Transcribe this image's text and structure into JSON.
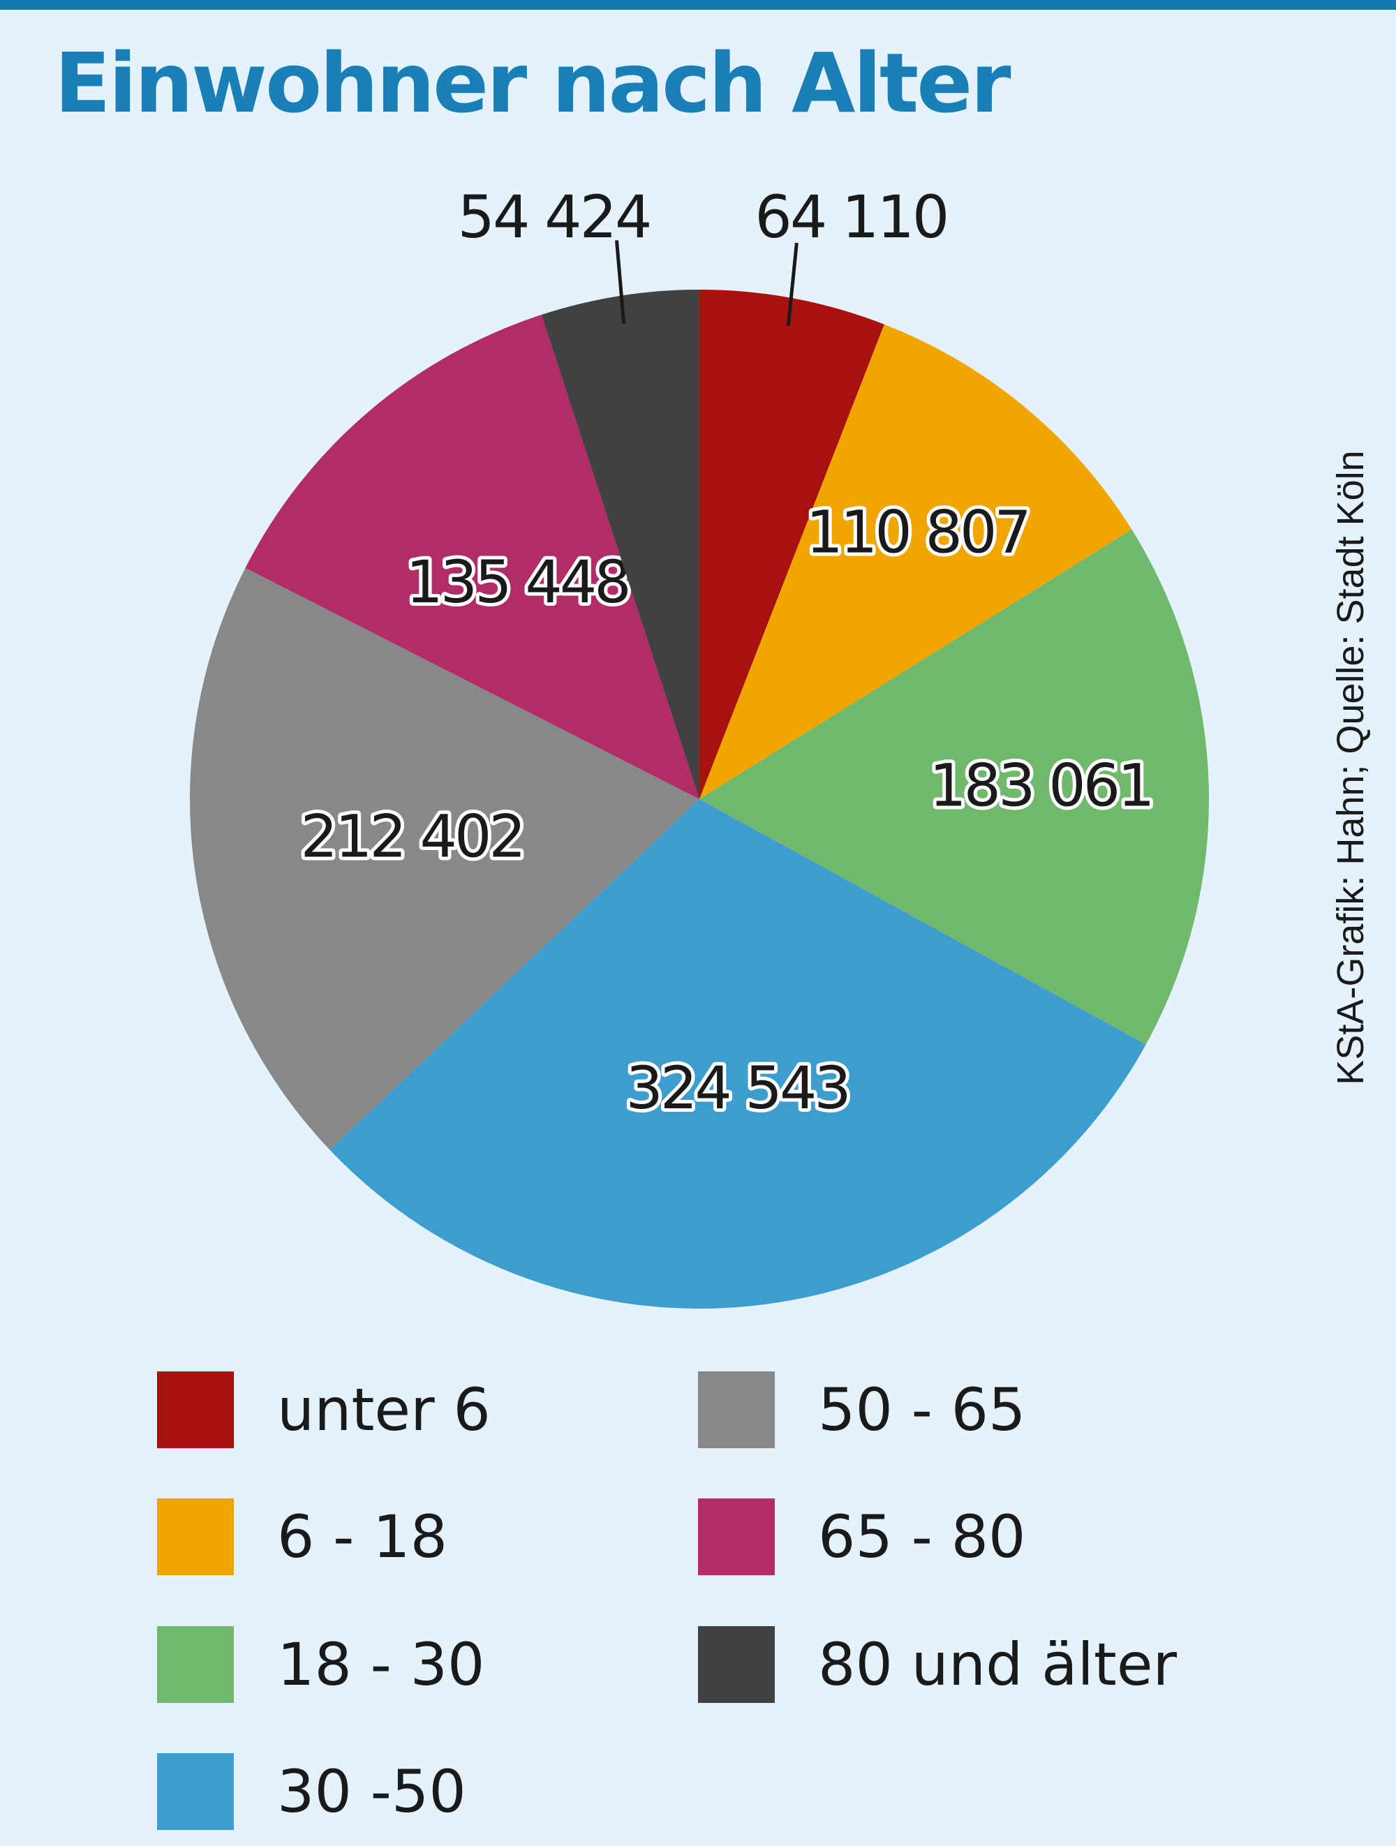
{
  "chart_data": {
    "type": "pie",
    "title": "Einwohner nach Alter",
    "categories": [
      "unter 6",
      "6 - 18",
      "18 - 30",
      "30 -50",
      "50 - 65",
      "65 - 80",
      "80 und älter"
    ],
    "values": [
      64110,
      110807,
      183061,
      324543,
      212402,
      135448,
      54424
    ],
    "value_labels": [
      "64 110",
      "110 807",
      "183 061",
      "324 543",
      "212 402",
      "135 448",
      "54 424"
    ],
    "colors": [
      "#a8120e",
      "#f1a500",
      "#6fb86c",
      "#3d9dce",
      "#888888",
      "#b12c68",
      "#414141"
    ],
    "start": "top",
    "direction": "clockwise",
    "legend_position": "bottom"
  },
  "legend": [
    {
      "label": "unter 6",
      "color": "#a8120e"
    },
    {
      "label": "6 - 18",
      "color": "#f1a500"
    },
    {
      "label": "18 - 30",
      "color": "#6fb86c"
    },
    {
      "label": "30 -50",
      "color": "#3d9dce"
    },
    {
      "label": "50 - 65",
      "color": "#888888"
    },
    {
      "label": "65 - 80",
      "color": "#b12c68"
    },
    {
      "label": "80 und älter",
      "color": "#414141"
    }
  ],
  "source": "KStA-Grafik: Hahn; Quelle: Stadt Köln",
  "colors": {
    "background": "#e4f2fb",
    "title": "#1a7fb6",
    "rule": "#1578ab"
  }
}
